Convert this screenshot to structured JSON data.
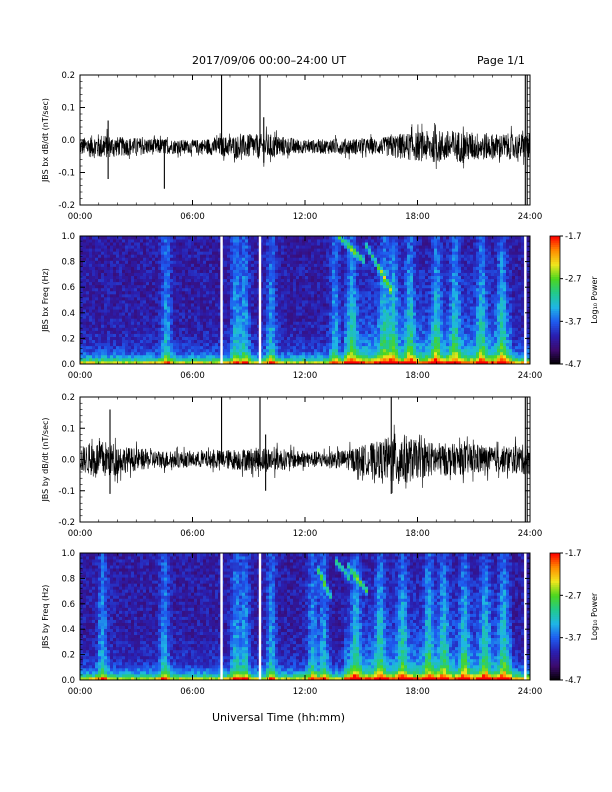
{
  "header": {
    "title": "2017/09/06  00:00–24:00 UT",
    "page": "Page 1/1"
  },
  "x_axis_title": "Universal Time (hh:mm)",
  "colors": {
    "trace": "#000000",
    "colormap": [
      "#000000",
      "#3c0a6e",
      "#2a1fb0",
      "#1e5bf0",
      "#1fb6e6",
      "#22c98c",
      "#4cd61e",
      "#f0e61e",
      "#ff8c00",
      "#ff0000"
    ]
  },
  "chart_data": [
    {
      "type": "line",
      "ylabel": "JBS bx dB/dt (nT/sec)",
      "xlim_hours": [
        0,
        24
      ],
      "ylim": [
        -0.2,
        0.2
      ],
      "xticks": [
        "00:00",
        "06:00",
        "12:00",
        "18:00",
        "24:00"
      ],
      "yticks": [
        "-0.2",
        "-0.1",
        "0.0",
        "0.1",
        "0.2"
      ],
      "baseline": -0.02,
      "noise_envelope": {
        "x": [
          0,
          1,
          2,
          4,
          6,
          7.5,
          8.5,
          10,
          12,
          14,
          16,
          17,
          18,
          19,
          20,
          22,
          23.5,
          24
        ],
        "amp": [
          0.025,
          0.04,
          0.03,
          0.025,
          0.02,
          0.03,
          0.035,
          0.04,
          0.02,
          0.025,
          0.025,
          0.04,
          0.045,
          0.05,
          0.05,
          0.04,
          0.04,
          0.04
        ]
      },
      "spikes": [
        {
          "x": 7.55,
          "ymin": -0.02,
          "ymax": 0.2
        },
        {
          "x": 9.6,
          "ymin": -0.02,
          "ymax": 0.2
        },
        {
          "x": 1.5,
          "ymin": -0.12,
          "ymax": 0.06
        },
        {
          "x": 4.5,
          "ymin": -0.15,
          "ymax": 0.0
        },
        {
          "x": 9.8,
          "ymin": -0.07,
          "ymax": 0.07
        },
        {
          "x": 23.75,
          "ymin": -0.2,
          "ymax": 0.2
        },
        {
          "x": 23.85,
          "ymin": -0.2,
          "ymax": 0.2
        }
      ]
    },
    {
      "type": "heatmap",
      "ylabel": "JBS bx Freq (Hz)",
      "xlim_hours": [
        0,
        24
      ],
      "ylim": [
        0.0,
        1.0
      ],
      "xticks": [
        "00:00",
        "06:00",
        "12:00",
        "18:00",
        "24:00"
      ],
      "yticks": [
        "0.0",
        "0.2",
        "0.4",
        "0.6",
        "0.8",
        "1.0"
      ],
      "colorbar": {
        "label": "Log₁₀ Power",
        "ticks": [
          "-1.7",
          "-2.7",
          "-3.7",
          "-4.7"
        ],
        "range": [
          -4.7,
          -1.7
        ]
      },
      "gaps_hours": [
        7.55,
        9.6,
        23.75
      ],
      "streak_hours": [
        4.6,
        8.3,
        8.8,
        10.2,
        13.6,
        14.5,
        16.2,
        16.7,
        17.6,
        19.0,
        20.0,
        21.4,
        22.5
      ],
      "arcs": [
        {
          "x0": 13.8,
          "x1": 15.2,
          "f0": 1.0,
          "f1": 0.8
        },
        {
          "x0": 15.2,
          "x1": 16.7,
          "f0": 0.95,
          "f1": 0.55
        }
      ]
    },
    {
      "type": "line",
      "ylabel": "JBS by dB/dt (nT/sec)",
      "xlim_hours": [
        0,
        24
      ],
      "ylim": [
        -0.2,
        0.2
      ],
      "xticks": [
        "00:00",
        "06:00",
        "12:00",
        "18:00",
        "24:00"
      ],
      "yticks": [
        "-0.2",
        "-0.1",
        "0.0",
        "0.1",
        "0.2"
      ],
      "baseline": 0.0,
      "noise_envelope": {
        "x": [
          0,
          1,
          1.5,
          2.5,
          4,
          6,
          7.5,
          8.5,
          10,
          12,
          14,
          16,
          17,
          18,
          19,
          20,
          21,
          22,
          24
        ],
        "amp": [
          0.04,
          0.06,
          0.06,
          0.04,
          0.03,
          0.025,
          0.03,
          0.035,
          0.04,
          0.025,
          0.03,
          0.06,
          0.09,
          0.06,
          0.055,
          0.05,
          0.05,
          0.04,
          0.05
        ]
      },
      "spikes": [
        {
          "x": 7.55,
          "ymin": 0.0,
          "ymax": 0.2
        },
        {
          "x": 9.6,
          "ymin": 0.0,
          "ymax": 0.2
        },
        {
          "x": 1.6,
          "ymin": -0.11,
          "ymax": 0.16
        },
        {
          "x": 9.9,
          "ymin": -0.1,
          "ymax": 0.08
        },
        {
          "x": 16.6,
          "ymin": -0.11,
          "ymax": 0.2
        },
        {
          "x": 23.75,
          "ymin": -0.2,
          "ymax": 0.2
        },
        {
          "x": 23.85,
          "ymin": -0.2,
          "ymax": 0.2
        }
      ]
    },
    {
      "type": "heatmap",
      "ylabel": "JBS by Freq (Hz)",
      "xlim_hours": [
        0,
        24
      ],
      "ylim": [
        0.0,
        1.0
      ],
      "xticks": [
        "00:00",
        "06:00",
        "12:00",
        "18:00",
        "24:00"
      ],
      "yticks": [
        "0.0",
        "0.2",
        "0.4",
        "0.6",
        "0.8",
        "1.0"
      ],
      "colorbar": {
        "label": "Log₁₀ Power",
        "ticks": [
          "-1.7",
          "-2.7",
          "-3.7",
          "-4.7"
        ],
        "range": [
          -4.7,
          -1.7
        ]
      },
      "gaps_hours": [
        7.55,
        9.6,
        23.75
      ],
      "streak_hours": [
        1.2,
        4.5,
        8.3,
        8.8,
        10.2,
        12.4,
        13.0,
        14.7,
        16.0,
        17.2,
        18.6,
        19.4,
        20.5,
        21.6,
        22.6
      ],
      "arcs": [
        {
          "x0": 12.6,
          "x1": 13.4,
          "f0": 0.9,
          "f1": 0.65
        },
        {
          "x0": 13.6,
          "x1": 14.4,
          "f0": 0.95,
          "f1": 0.8
        },
        {
          "x0": 14.3,
          "x1": 15.3,
          "f0": 0.9,
          "f1": 0.7
        }
      ]
    }
  ]
}
